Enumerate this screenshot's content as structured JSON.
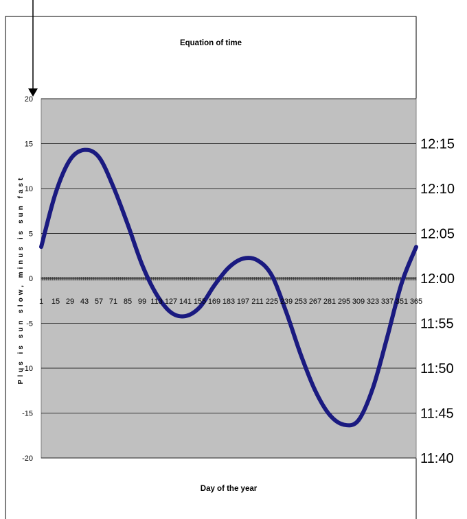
{
  "chart_data": {
    "type": "line",
    "title": "Equation of time",
    "xlabel": "Day of the year",
    "ylabel": "Plus is sun slow, minus is sun fast",
    "x_ticks": [
      1,
      15,
      29,
      43,
      57,
      71,
      85,
      99,
      113,
      127,
      141,
      155,
      169,
      183,
      197,
      211,
      225,
      239,
      253,
      267,
      281,
      295,
      309,
      323,
      337,
      351,
      365
    ],
    "x_tick_labels": [
      "1",
      "15",
      "29",
      "43",
      "57",
      "71",
      "85",
      "99",
      "113",
      "127",
      "141",
      "155",
      "169",
      "183",
      "197",
      "211",
      "225",
      "239",
      "253",
      "267",
      "281",
      "295",
      "309",
      "323",
      "337",
      "351",
      "365"
    ],
    "xlim": [
      1,
      365
    ],
    "y_ticks": [
      20,
      15,
      10,
      5,
      0,
      -5,
      -10,
      -15,
      -20
    ],
    "y_tick_labels": [
      "20",
      "15",
      "10",
      "5",
      "0",
      "-5",
      "-10",
      "-15",
      "-20"
    ],
    "ylim": [
      -20,
      20
    ],
    "y2_ticks": [
      15,
      10,
      5,
      0,
      -5,
      -10,
      -15,
      -20
    ],
    "y2_tick_labels": [
      "12:15",
      "12:10",
      "12:05",
      "12:00",
      "11:55",
      "11:50",
      "11:45",
      "11:40"
    ],
    "grid": true,
    "legend": "none",
    "series": [
      {
        "x": [
          1,
          15,
          29,
          43,
          57,
          71,
          85,
          99,
          113,
          127,
          141,
          155,
          169,
          183,
          197,
          211,
          225,
          239,
          253,
          267,
          281,
          295,
          309,
          323,
          337,
          351,
          365
        ],
        "values": [
          3.5,
          9.5,
          13.2,
          14.3,
          13.5,
          10.2,
          6.0,
          1.5,
          -1.8,
          -3.8,
          -4.2,
          -3.2,
          -0.8,
          1.2,
          2.2,
          2.0,
          0.3,
          -3.8,
          -8.5,
          -12.5,
          -15.2,
          -16.3,
          -15.8,
          -12.2,
          -6.5,
          -0.5,
          3.5
        ]
      }
    ],
    "colors": {
      "line": "#1a1a80",
      "plot_bg": "#c0c0c0"
    }
  }
}
